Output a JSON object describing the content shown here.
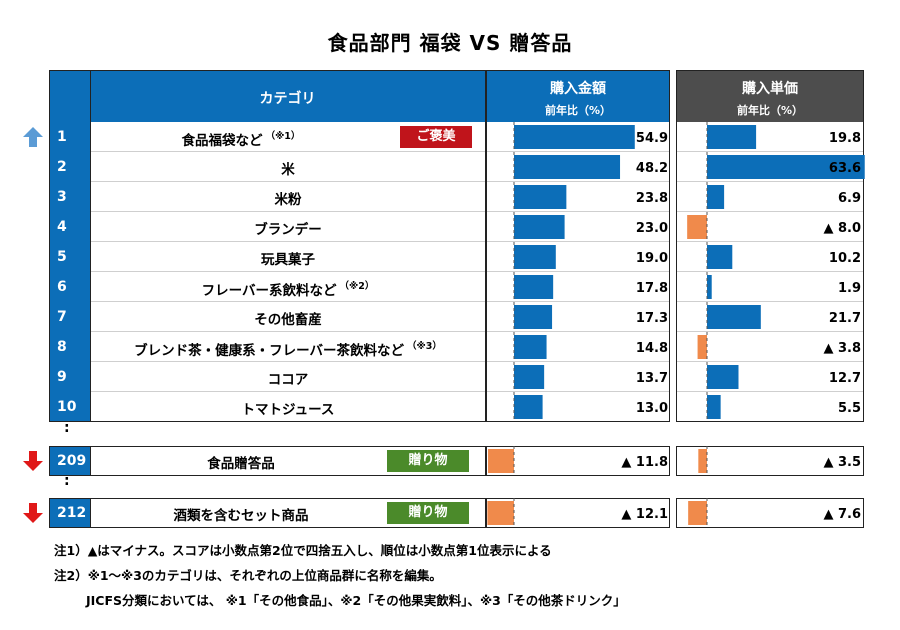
{
  "title": "食品部門 福袋 VS 贈答品",
  "headers": {
    "category": "カテゴリ",
    "amount": "購入金額",
    "amount_sub": "前年比（%）",
    "unit_price": "購入単価",
    "unit_price_sub": "前年比（%）"
  },
  "colors": {
    "blue": "#0c6eb8",
    "orange": "#f08a4b",
    "dark_header": "#4d4d4d",
    "red_badge": "#c0141b",
    "green_badge": "#4b8a2a"
  },
  "ellipsis": ":",
  "badges": {
    "reward": "ご褒美",
    "gift": "贈り物"
  },
  "chart_data": {
    "type": "table",
    "columns": [
      "購入金額 前年比（%）",
      "購入単価 前年比（%）"
    ],
    "rows": [
      {
        "rank": "1",
        "category": "食品福袋など",
        "note": "（※1）",
        "badge": "ご褒美",
        "arrow": "up",
        "amount": 54.9,
        "amount_label": "54.9",
        "unit_price": 19.8,
        "unit_price_label": "19.8"
      },
      {
        "rank": "2",
        "category": "米",
        "note": "",
        "badge": "",
        "arrow": "",
        "amount": 48.2,
        "amount_label": "48.2",
        "unit_price": 63.6,
        "unit_price_label": "63.6"
      },
      {
        "rank": "3",
        "category": "米粉",
        "note": "",
        "badge": "",
        "arrow": "",
        "amount": 23.8,
        "amount_label": "23.8",
        "unit_price": 6.9,
        "unit_price_label": "6.9"
      },
      {
        "rank": "4",
        "category": "ブランデー",
        "note": "",
        "badge": "",
        "arrow": "",
        "amount": 23.0,
        "amount_label": "23.0",
        "unit_price": -8.0,
        "unit_price_label": "▲ 8.0"
      },
      {
        "rank": "5",
        "category": "玩具菓子",
        "note": "",
        "badge": "",
        "arrow": "",
        "amount": 19.0,
        "amount_label": "19.0",
        "unit_price": 10.2,
        "unit_price_label": "10.2"
      },
      {
        "rank": "6",
        "category": "フレーバー系飲料など",
        "note": "（※2）",
        "badge": "",
        "arrow": "",
        "amount": 17.8,
        "amount_label": "17.8",
        "unit_price": 1.9,
        "unit_price_label": "1.9"
      },
      {
        "rank": "7",
        "category": "その他畜産",
        "note": "",
        "badge": "",
        "arrow": "",
        "amount": 17.3,
        "amount_label": "17.3",
        "unit_price": 21.7,
        "unit_price_label": "21.7"
      },
      {
        "rank": "8",
        "category": "ブレンド茶・健康系・フレーバー茶飲料など",
        "note": "（※3）",
        "badge": "",
        "arrow": "",
        "amount": 14.8,
        "amount_label": "14.8",
        "unit_price": -3.8,
        "unit_price_label": "▲ 3.8"
      },
      {
        "rank": "9",
        "category": "ココア",
        "note": "",
        "badge": "",
        "arrow": "",
        "amount": 13.7,
        "amount_label": "13.7",
        "unit_price": 12.7,
        "unit_price_label": "12.7"
      },
      {
        "rank": "10",
        "category": "トマトジュース",
        "note": "",
        "badge": "",
        "arrow": "",
        "amount": 13.0,
        "amount_label": "13.0",
        "unit_price": 5.5,
        "unit_price_label": "5.5"
      },
      {
        "rank": "209",
        "category": "食品贈答品",
        "note": "",
        "badge": "贈り物",
        "arrow": "down",
        "amount": -11.8,
        "amount_label": "▲ 11.8",
        "unit_price": -3.5,
        "unit_price_label": "▲ 3.5"
      },
      {
        "rank": "212",
        "category": "酒類を含むセット商品",
        "note": "",
        "badge": "贈り物",
        "arrow": "down",
        "amount": -12.1,
        "amount_label": "▲ 12.1",
        "unit_price": -7.6,
        "unit_price_label": "▲ 7.6"
      }
    ]
  },
  "notes": [
    "注1）▲はマイナス。スコアは小数点第2位で四捨五入し、順位は小数点第1位表示による",
    "注2）※1～※3のカテゴリは、それぞれの上位商品群に名称を編集。",
    "JICFS分類においては、 ※1「その他食品」、※2「その他果実飲料」、※3「その他茶ドリンク」"
  ]
}
